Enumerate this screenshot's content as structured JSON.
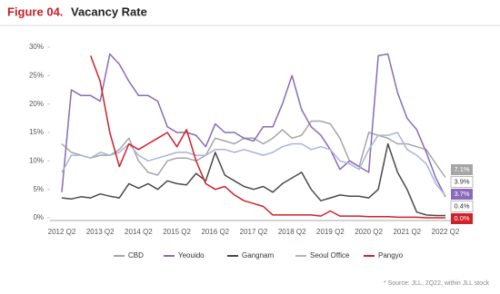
{
  "chart_data": {
    "type": "line",
    "title_prefix": "Figure 04.",
    "title": "Vacancy Rate",
    "source": "* Source: JLL, 2Q22, within JLL stock",
    "categories": [
      "2012 Q2",
      null,
      null,
      null,
      "2013 Q2",
      null,
      null,
      null,
      "2014 Q2",
      null,
      null,
      null,
      "2015 Q2",
      null,
      null,
      null,
      "2016 Q2",
      null,
      null,
      null,
      "2017 Q2",
      null,
      null,
      null,
      "2018 Q2",
      null,
      null,
      null,
      "2019 Q2",
      null,
      null,
      null,
      "2020 Q2",
      null,
      null,
      null,
      "2021 Q2",
      null,
      null,
      null,
      "2022 Q2"
    ],
    "ylim": [
      0,
      30
    ],
    "yticks": [
      {
        "value": 0,
        "label": "0%"
      },
      {
        "value": 5,
        "label": "5%"
      },
      {
        "value": 10,
        "label": "10%"
      },
      {
        "value": 15,
        "label": "15%"
      },
      {
        "value": 20,
        "label": "20%"
      },
      {
        "value": 25,
        "label": "25%"
      },
      {
        "value": 30,
        "label": "30%"
      }
    ],
    "legend": "bottom",
    "series": [
      {
        "name": "CBD",
        "color": "#a6a6a6",
        "values": [
          13,
          11.5,
          11,
          10.5,
          11,
          11,
          12,
          14,
          10,
          8,
          7.5,
          10,
          10.5,
          10.5,
          10,
          11,
          14,
          13.5,
          13,
          14,
          14,
          13,
          14,
          15.5,
          14,
          14.5,
          17,
          17,
          16.5,
          14,
          10,
          9,
          15,
          14.5,
          14,
          13,
          13,
          12.5,
          12,
          9.5,
          7.1
        ],
        "value_labels": [
          null,
          null,
          null,
          null,
          null,
          null,
          null,
          null,
          null,
          null,
          null,
          null,
          null,
          null,
          null,
          null,
          null,
          null,
          null,
          null,
          null,
          null,
          null,
          null,
          null,
          null,
          null,
          null,
          null,
          null,
          null,
          null,
          null,
          null,
          null,
          null,
          null,
          null,
          null,
          null,
          "7.1%"
        ]
      },
      {
        "name": "Yeouido",
        "color": "#8a6bb8",
        "values": [
          4.5,
          22.5,
          21.5,
          21.5,
          20.5,
          28.8,
          27,
          24,
          21.5,
          21.5,
          20.5,
          16,
          15,
          15,
          14.5,
          12.5,
          16.5,
          15,
          15,
          14,
          13.5,
          16,
          16,
          20,
          25,
          19,
          16,
          14.5,
          12,
          8.5,
          10,
          9,
          8,
          28.5,
          28.8,
          22,
          17.5,
          15.5,
          11.5,
          7,
          3.7
        ],
        "value_labels": [
          null,
          null,
          null,
          null,
          null,
          null,
          null,
          null,
          null,
          null,
          null,
          null,
          null,
          null,
          null,
          null,
          null,
          null,
          null,
          null,
          null,
          null,
          null,
          null,
          null,
          null,
          null,
          null,
          null,
          null,
          null,
          null,
          null,
          null,
          null,
          null,
          null,
          null,
          null,
          null,
          "3.7%"
        ]
      },
      {
        "name": "Gangnam",
        "color": "#4a4a4a",
        "values": [
          3.5,
          3.3,
          3.7,
          3.5,
          4.2,
          3.8,
          3.5,
          6,
          5.2,
          6,
          5,
          6.5,
          6,
          5.8,
          7.8,
          6.5,
          11.5,
          7.5,
          6.5,
          5.5,
          5,
          5.5,
          4.5,
          6,
          7,
          8,
          5,
          3,
          3.5,
          4,
          3.8,
          3.8,
          3.5,
          5,
          13,
          8,
          5,
          1,
          0.5,
          0.4,
          0.4
        ],
        "value_labels": [
          null,
          null,
          null,
          null,
          null,
          null,
          null,
          null,
          null,
          null,
          null,
          null,
          null,
          null,
          null,
          null,
          null,
          null,
          null,
          null,
          null,
          null,
          null,
          null,
          null,
          null,
          null,
          null,
          null,
          null,
          null,
          null,
          null,
          null,
          null,
          null,
          null,
          null,
          null,
          null,
          "0.4%"
        ]
      },
      {
        "name": "Seoul Office",
        "color": "#aab4dc",
        "values": [
          8,
          11,
          11,
          10.5,
          11.5,
          11,
          11.5,
          13,
          11,
          10,
          10.5,
          11,
          11.5,
          11.5,
          11,
          11,
          12,
          12,
          11.5,
          12,
          11.5,
          11,
          11.5,
          12.5,
          13,
          13,
          12,
          12.5,
          12,
          10,
          9.5,
          8.5,
          12,
          14.5,
          14.5,
          15,
          12,
          11,
          9.5,
          6,
          3.9
        ],
        "value_labels": [
          null,
          null,
          null,
          null,
          null,
          null,
          null,
          null,
          null,
          null,
          null,
          null,
          null,
          null,
          null,
          null,
          null,
          null,
          null,
          null,
          null,
          null,
          null,
          null,
          null,
          null,
          null,
          null,
          null,
          null,
          null,
          null,
          null,
          null,
          null,
          null,
          null,
          null,
          null,
          null,
          "3.9%"
        ]
      },
      {
        "name": "Pangyo",
        "color": "#d0202a",
        "values": [
          null,
          null,
          null,
          28.5,
          24,
          15,
          9,
          13,
          12,
          13,
          14,
          15,
          12.5,
          15.5,
          10,
          6,
          5,
          5.5,
          4,
          3,
          2.5,
          2,
          0.5,
          0.5,
          0.5,
          0.5,
          0.5,
          0.3,
          1.2,
          0.3,
          0.3,
          0.3,
          0.2,
          0.2,
          0.2,
          0.1,
          0.1,
          0.1,
          0,
          0,
          0
        ],
        "value_labels": [
          null,
          null,
          null,
          null,
          null,
          null,
          null,
          null,
          null,
          null,
          null,
          null,
          null,
          null,
          null,
          null,
          null,
          null,
          null,
          null,
          null,
          null,
          null,
          null,
          null,
          null,
          null,
          null,
          null,
          null,
          null,
          null,
          null,
          null,
          null,
          null,
          null,
          null,
          null,
          null,
          "0.0%"
        ]
      }
    ]
  }
}
